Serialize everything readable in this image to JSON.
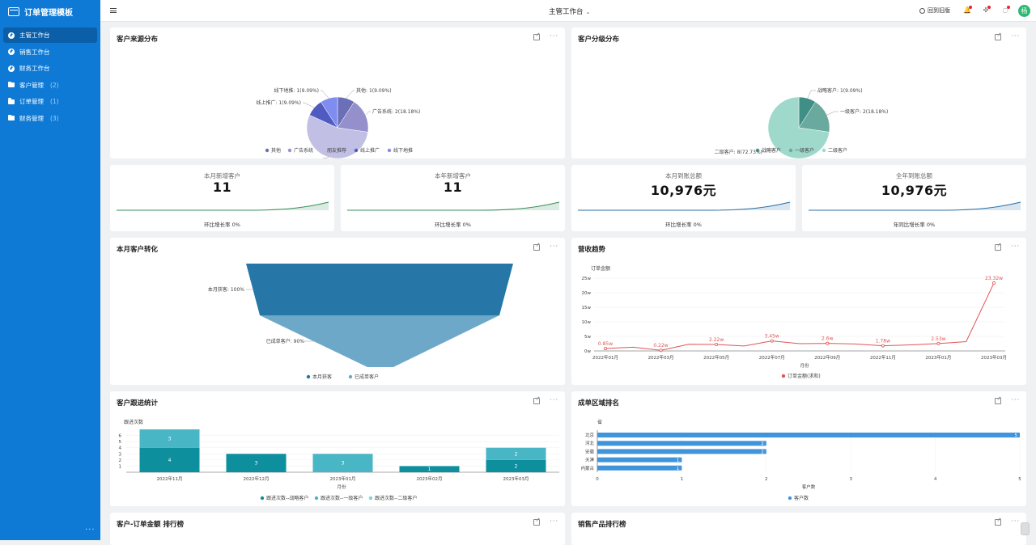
{
  "brand": {
    "title": "订单管理模板"
  },
  "nav": [
    {
      "label": "主管工作台",
      "count": "",
      "icon": "dashboard-icon",
      "active": true
    },
    {
      "label": "销售工作台",
      "count": "",
      "icon": "dashboard-icon",
      "active": false
    },
    {
      "label": "财务工作台",
      "count": "",
      "icon": "dashboard-icon",
      "active": false
    },
    {
      "label": "客户管理",
      "count": "(2)",
      "icon": "folder-icon",
      "active": false
    },
    {
      "label": "订单管理",
      "count": "(1)",
      "icon": "folder-icon",
      "active": false
    },
    {
      "label": "财务管理",
      "count": "(3)",
      "icon": "folder-icon",
      "active": false
    }
  ],
  "sidebar_more": "···",
  "header": {
    "title": "主管工作台",
    "back_label": "回到旧版"
  },
  "cards": {
    "source": {
      "title": "客户来源分布"
    },
    "level": {
      "title": "客户分级分布"
    },
    "conversion": {
      "title": "本月客户转化"
    },
    "trend": {
      "title": "营收趋势"
    },
    "follow": {
      "title": "客户跟进统计"
    },
    "region": {
      "title": "成单区域排名"
    },
    "rank1": {
      "title": "客户-订单金额 排行榜"
    },
    "rank2": {
      "title": "销售产品排行榜"
    }
  },
  "kpis": [
    {
      "label": "本月新增客户",
      "value": "11",
      "sub": "环比增长率 0%",
      "color": "#3a8f5a"
    },
    {
      "label": "本年新增客户",
      "value": "11",
      "sub": "环比增长率 0%",
      "color": "#3a8f5a"
    },
    {
      "label": "本月到账总额",
      "value": "10,976元",
      "sub": "环比增长率 0%",
      "color": "#2a6fa8"
    },
    {
      "label": "全年到账总额",
      "value": "10,976元",
      "sub": "年同比增长率 0%",
      "color": "#2a6fa8"
    }
  ],
  "chart_data": [
    {
      "type": "pie",
      "title": "客户来源分布",
      "slices": [
        {
          "name": "其他",
          "value": 1,
          "pct": "9.09%",
          "color": "#6a6fb8"
        },
        {
          "name": "广告系统",
          "value": 2,
          "pct": "18.18%",
          "color": "#9390cc"
        },
        {
          "name": "朋友推荐",
          "value": 6,
          "pct": "54.55%",
          "color": "#c2bfe4"
        },
        {
          "name": "线上推广",
          "value": 1,
          "pct": "9.09%",
          "color": "#4f5bc0"
        },
        {
          "name": "线下地推",
          "value": 1,
          "pct": "9.09%",
          "color": "#7f8cf0"
        }
      ]
    },
    {
      "type": "pie",
      "title": "客户分级分布",
      "slices": [
        {
          "name": "战略客户",
          "value": 1,
          "pct": "9.09%",
          "color": "#3f8f87"
        },
        {
          "name": "一级客户",
          "value": 2,
          "pct": "18.18%",
          "color": "#6aa99d"
        },
        {
          "name": "二级客户",
          "value": 8,
          "pct": "72.73%",
          "color": "#9fd9cc"
        }
      ]
    },
    {
      "type": "funnel",
      "title": "本月客户转化",
      "stages": [
        {
          "name": "本月获客",
          "pct": "100%",
          "color": "#2676a8"
        },
        {
          "name": "已成单客户",
          "pct": "90%",
          "color": "#6ea8c9"
        }
      ]
    },
    {
      "type": "line",
      "title": "营收趋势",
      "ylabel": "订单金额",
      "xlabel": "月份",
      "x_ticks": [
        "2022年01月",
        "2022年03月",
        "2022年05月",
        "2022年07月",
        "2022年09月",
        "2022年11月",
        "2023年01月",
        "2023年03月"
      ],
      "y_ticks": [
        "0w",
        "5w",
        "10w",
        "15w",
        "20w",
        "25w"
      ],
      "ylim": [
        0,
        25
      ],
      "points": [
        {
          "x": "2022年01月",
          "y": 0.85,
          "label": "0.85w"
        },
        {
          "x": "2022年02月",
          "y": 1.3,
          "label": ""
        },
        {
          "x": "2022年03月",
          "y": 0.22,
          "label": "0.22w"
        },
        {
          "x": "2022年04月",
          "y": 2.3,
          "label": ""
        },
        {
          "x": "2022年05月",
          "y": 2.22,
          "label": "2.22w"
        },
        {
          "x": "2022年06月",
          "y": 1.7,
          "label": ""
        },
        {
          "x": "2022年07月",
          "y": 3.45,
          "label": "3.45w"
        },
        {
          "x": "2022年08月",
          "y": 2.5,
          "label": ""
        },
        {
          "x": "2022年09月",
          "y": 2.6,
          "label": "2.6w"
        },
        {
          "x": "2022年10月",
          "y": 2.4,
          "label": ""
        },
        {
          "x": "2022年11月",
          "y": 1.78,
          "label": "1.78w"
        },
        {
          "x": "2022年12月",
          "y": 2.1,
          "label": ""
        },
        {
          "x": "2023年01月",
          "y": 2.53,
          "label": "2.53w"
        },
        {
          "x": "2023年02月",
          "y": 3.2,
          "label": ""
        },
        {
          "x": "2023年03月",
          "y": 23.32,
          "label": "23.32w"
        }
      ],
      "series_name": "订单金额(求和)",
      "color": "#e05556"
    },
    {
      "type": "bar",
      "title": "客户跟进统计",
      "ylabel": "跟进次数",
      "xlabel": "月份",
      "categories": [
        "2022年11月",
        "2022年12月",
        "2023年01月",
        "2023年02月",
        "2023年03月"
      ],
      "y_ticks": [
        "1",
        "2",
        "3",
        "4",
        "5",
        "6"
      ],
      "ylim": [
        0,
        7
      ],
      "series": [
        {
          "name": "跟进次数--战略客户",
          "values": [
            4,
            3,
            0,
            1,
            2
          ],
          "color": "#0d8f9e"
        },
        {
          "name": "跟进次数--一级客户",
          "values": [
            3,
            0,
            3,
            0,
            2
          ],
          "color": "#49b6c6"
        },
        {
          "name": "跟进次数--二级客户",
          "values": [
            0,
            0,
            0,
            0,
            0
          ],
          "color": "#7fd4d8"
        }
      ]
    },
    {
      "type": "bar",
      "orientation": "horizontal",
      "title": "成单区域排名",
      "ylabel": "省",
      "xlabel": "客户数",
      "categories": [
        "北京",
        "河北",
        "安徽",
        "天津",
        "内蒙古"
      ],
      "values": [
        5,
        2,
        2,
        1,
        1
      ],
      "x_ticks": [
        "0",
        "1",
        "2",
        "3",
        "4",
        "5"
      ],
      "xlim": [
        0,
        5
      ],
      "series_name": "客户数",
      "color": "#3f94dc"
    }
  ]
}
